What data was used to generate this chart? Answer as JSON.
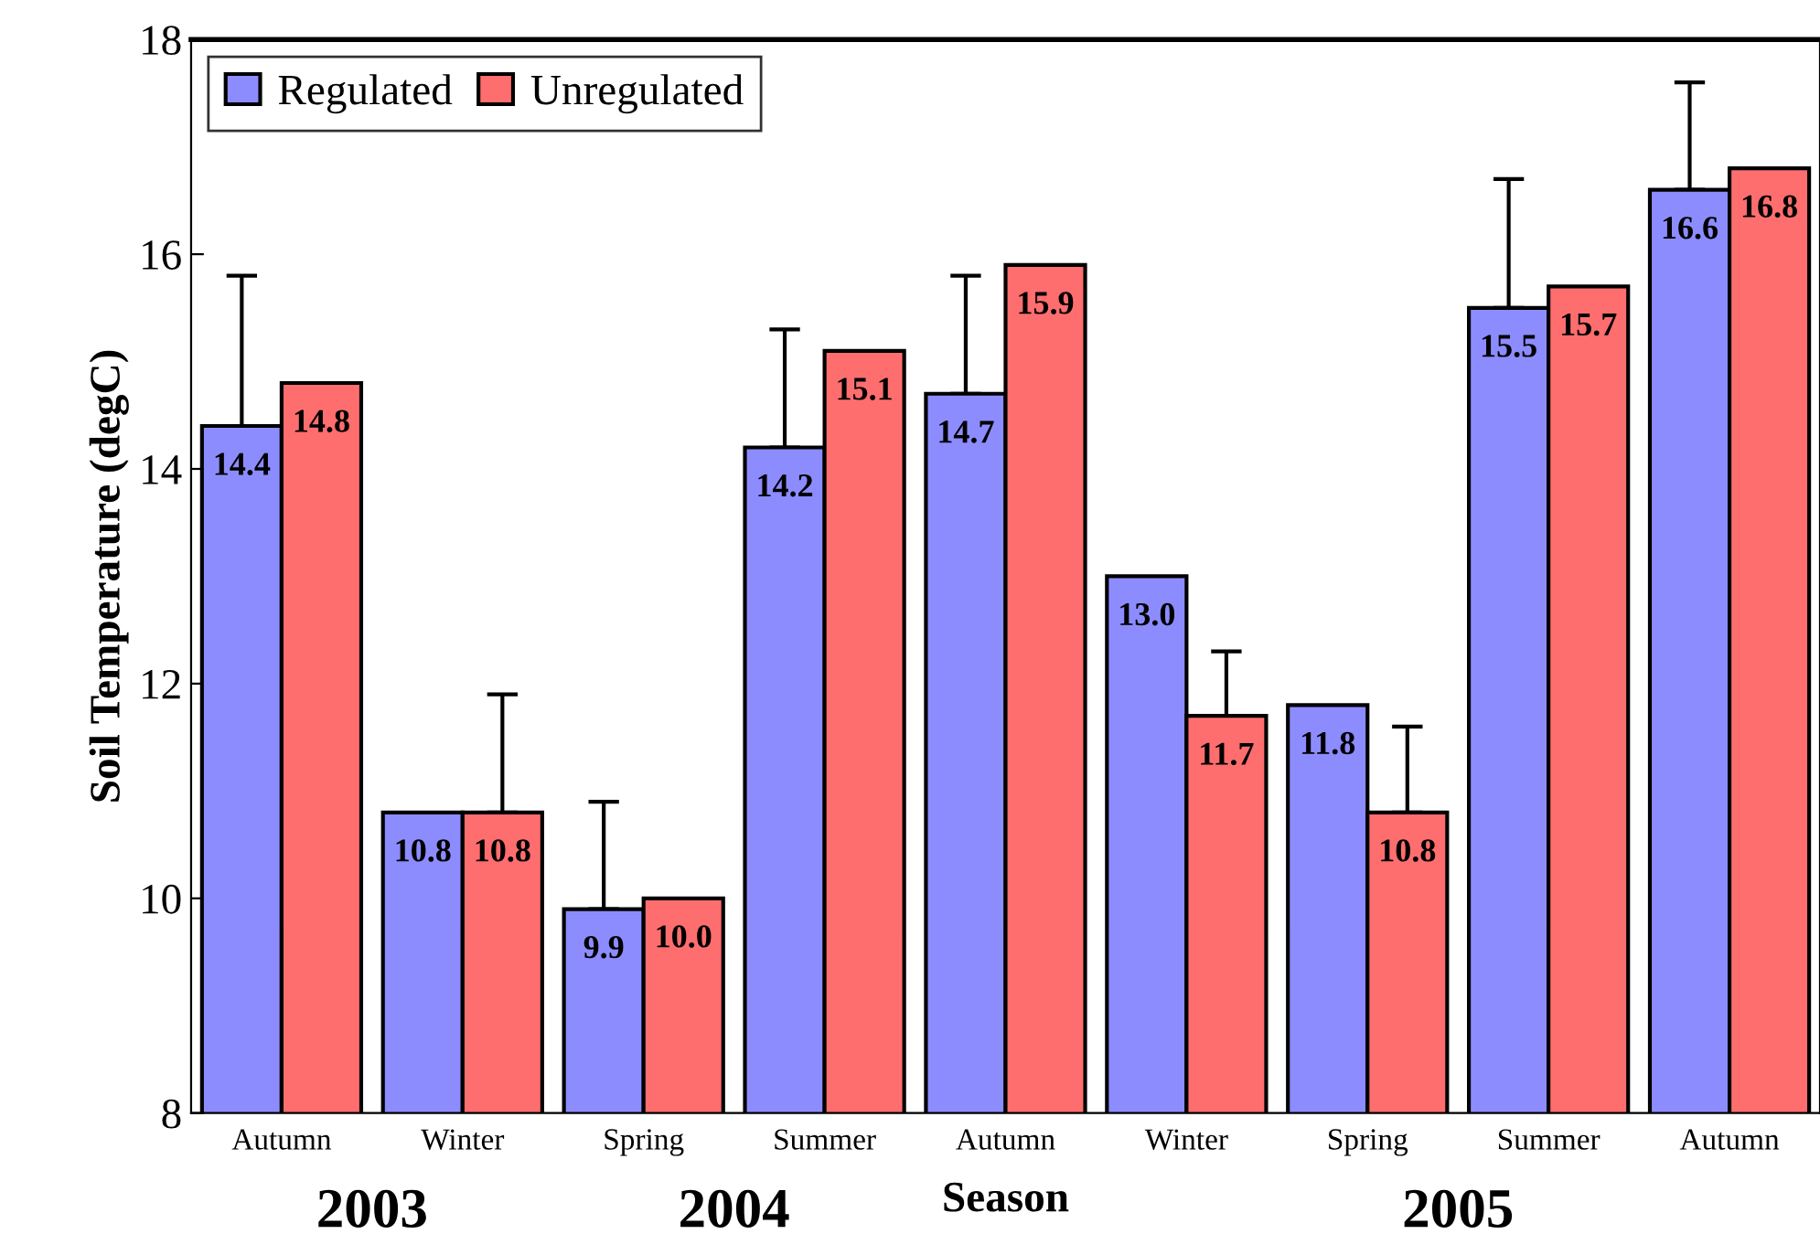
{
  "chart_data": {
    "type": "bar",
    "xlabel": "Season",
    "ylabel": "Soil Temperature (degC)",
    "categories": [
      "Autumn",
      "Winter",
      "Spring",
      "Summer",
      "Autumn",
      "Winter",
      "Spring",
      "Summer",
      "Autumn"
    ],
    "series": [
      {
        "name": "Regulated",
        "color": "#8c8cff",
        "values": [
          14.4,
          10.8,
          9.9,
          14.2,
          14.7,
          13.0,
          11.8,
          15.5,
          16.6
        ],
        "value_labels": [
          "14.4",
          "10.8",
          "9.9",
          "14.2",
          "14.7",
          "13.0",
          "11.8",
          "15.5",
          "16.6"
        ],
        "errors": [
          [
            14.4,
            15.8
          ],
          null,
          [
            9.9,
            10.9
          ],
          [
            14.2,
            15.3
          ],
          [
            14.7,
            15.8
          ],
          null,
          null,
          [
            15.5,
            16.7
          ],
          [
            16.6,
            17.6
          ]
        ]
      },
      {
        "name": "Unregulated",
        "color": "#ff6e6e",
        "values": [
          14.8,
          10.8,
          10.0,
          15.1,
          15.9,
          11.7,
          10.8,
          15.7,
          16.8
        ],
        "value_labels": [
          "14.8",
          "10.8",
          "10.0",
          "15.1",
          "15.9",
          "11.7",
          "10.8",
          "15.7",
          "16.8"
        ],
        "errors": [
          null,
          [
            10.8,
            11.9
          ],
          null,
          null,
          null,
          [
            11.7,
            12.3
          ],
          [
            10.8,
            11.6
          ],
          null,
          null
        ]
      }
    ],
    "ylim": [
      8,
      18
    ],
    "yticks": [
      8,
      10,
      12,
      14,
      16,
      18
    ],
    "legend": "top left",
    "grid": false,
    "annotations": [
      "2003",
      "2004",
      "2005"
    ]
  }
}
